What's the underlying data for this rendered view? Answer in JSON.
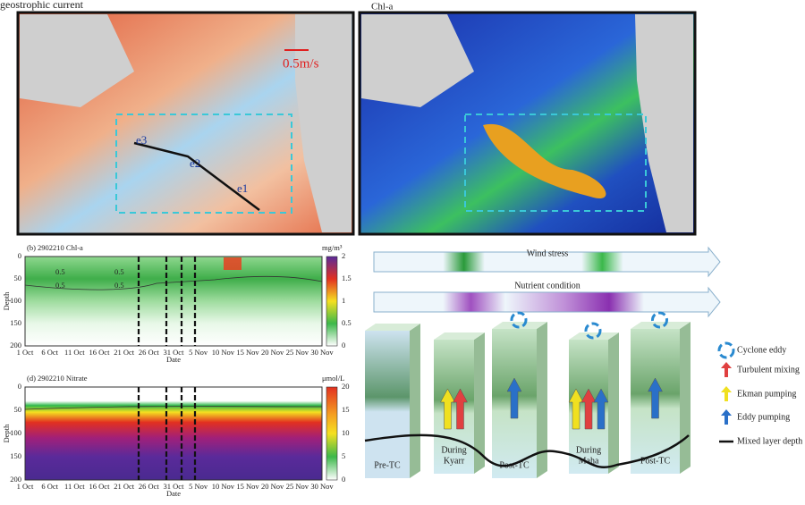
{
  "maps": [
    {
      "title": "geostrophic current",
      "scale_label": "0.5m/s",
      "eddy_labels": [
        "e3",
        "e2",
        "e1"
      ]
    },
    {
      "title": "Chl-a"
    }
  ],
  "profiles": [
    {
      "title": "(b) 2902210 Chl-a",
      "unit": "mg/m³",
      "y_label": "Depth",
      "x_label": "Date",
      "y_ticks": [
        "0",
        "50",
        "100",
        "150",
        "200"
      ],
      "x_ticks": [
        "1 Oct",
        "6 Oct",
        "11 Oct",
        "16 Oct",
        "21 Oct",
        "26 Oct",
        "31 Oct",
        "5 Nov",
        "10 Nov",
        "15 Nov",
        "20 Nov",
        "25 Nov",
        "30 Nov"
      ],
      "colorbar_ticks": [
        "0",
        "0.5",
        "1",
        "1.5",
        "2"
      ],
      "contour_labels": [
        "0.5",
        "0.5",
        "0.5",
        "0.5"
      ]
    },
    {
      "title": "(d) 2902210 Nitrate",
      "unit": "μmol/L",
      "y_label": "Depth",
      "x_label": "Date",
      "y_ticks": [
        "0",
        "50",
        "100",
        "150",
        "200"
      ],
      "x_ticks": [
        "1 Oct",
        "6 Oct",
        "11 Oct",
        "16 Oct",
        "21 Oct",
        "26 Oct",
        "31 Oct",
        "5 Nov",
        "10 Nov",
        "15 Nov",
        "20 Nov",
        "25 Nov",
        "30 Nov"
      ],
      "colorbar_ticks": [
        "0",
        "5",
        "10",
        "15",
        "20"
      ]
    }
  ],
  "schematic": {
    "gradients": [
      "Wind stress",
      "Nutrient condition"
    ],
    "columns": [
      {
        "label": [
          "Pre-TC"
        ]
      },
      {
        "label": [
          "During",
          "Kyarr"
        ]
      },
      {
        "label": [
          "Post-TC"
        ]
      },
      {
        "label": [
          "During",
          "Maha"
        ]
      },
      {
        "label": [
          "Post-TC"
        ]
      }
    ],
    "legend": [
      "Cyclone eddy",
      "Turbulent mixing",
      "Ekman pumping",
      "Eddy pumping",
      "Mixed layer depth"
    ]
  }
}
